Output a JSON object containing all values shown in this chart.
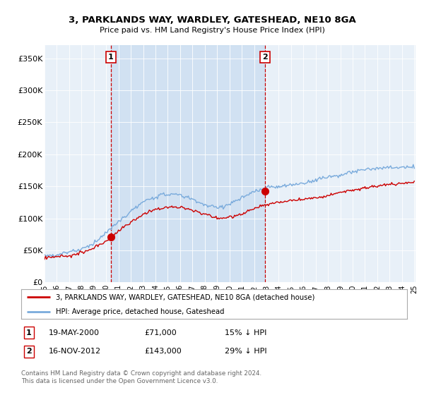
{
  "title1": "3, PARKLANDS WAY, WARDLEY, GATESHEAD, NE10 8GA",
  "title2": "Price paid vs. HM Land Registry's House Price Index (HPI)",
  "ylabel_ticks": [
    "£0",
    "£50K",
    "£100K",
    "£150K",
    "£200K",
    "£250K",
    "£300K",
    "£350K"
  ],
  "ylabel_values": [
    0,
    50000,
    100000,
    150000,
    200000,
    250000,
    300000,
    350000
  ],
  "ylim": [
    0,
    370000
  ],
  "hpi_color": "#7aabdc",
  "price_color": "#cc0000",
  "shade_color": "#ddeeff",
  "t_sale1": 2000.37,
  "t_sale2": 2012.87,
  "sale1_price": 71000,
  "sale2_price": 143000,
  "legend_line1": "3, PARKLANDS WAY, WARDLEY, GATESHEAD, NE10 8GA (detached house)",
  "legend_line2": "HPI: Average price, detached house, Gateshead",
  "table_row1": [
    "1",
    "19-MAY-2000",
    "£71,000",
    "15% ↓ HPI"
  ],
  "table_row2": [
    "2",
    "16-NOV-2012",
    "£143,000",
    "29% ↓ HPI"
  ],
  "footnote": "Contains HM Land Registry data © Crown copyright and database right 2024.\nThis data is licensed under the Open Government Licence v3.0.",
  "background_color": "#ffffff",
  "plot_bg_color": "#e8f0f8"
}
